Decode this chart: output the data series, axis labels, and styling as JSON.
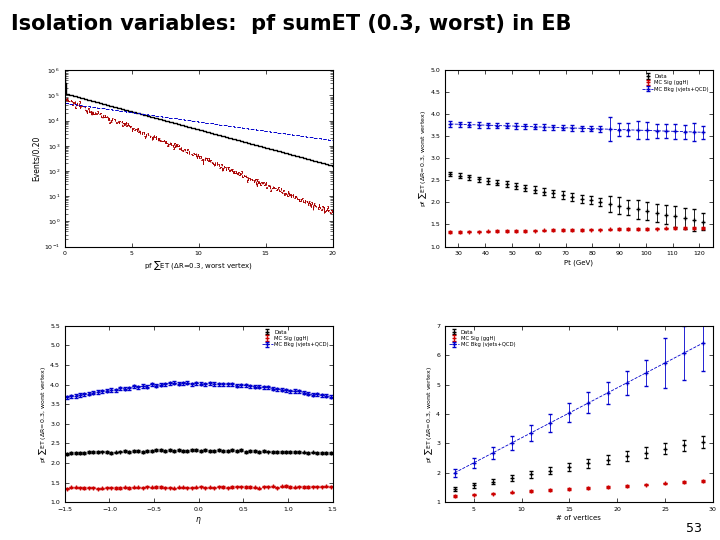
{
  "title": "Isolation variables:  pf sumET (0.3, worst) in EB",
  "title_fontsize": 15,
  "title_fontweight": "bold",
  "page_number": "53",
  "background_color": "#ffffff",
  "top_left": {
    "xlabel": "pf $\\sum$ET ($\\Delta$R=0.3, worst vertex)",
    "ylabel": "Events/0.20",
    "xmin": 0,
    "xmax": 20,
    "ymin": 0.1,
    "ymax": 1000000,
    "xticks": [
      0,
      5,
      10,
      15,
      20
    ],
    "data_color": "#000000",
    "sig_color": "#aa0000",
    "bkg_color": "#0000cc"
  },
  "top_right": {
    "xlabel": "Pt (GeV)",
    "ylabel": "pf $\\sum$ET ($\\Delta$R=0.3, worst vertex)",
    "xmin": 25,
    "xmax": 125,
    "ymin": 1.0,
    "ymax": 5.0,
    "yticks": [
      1.0,
      1.5,
      2.0,
      2.5,
      3.0,
      3.5,
      4.0,
      4.5,
      5.0
    ],
    "xticks": [
      30,
      40,
      50,
      60,
      70,
      80,
      90,
      100,
      110,
      120
    ],
    "legend_data": "Data",
    "legend_sig": "MC Sig (ggH)",
    "legend_bkg": "MC Bkg (vjets+QCD)",
    "data_color": "#000000",
    "sig_color": "#cc0000",
    "bkg_color": "#0000cc"
  },
  "bottom_left": {
    "xlabel": "$\\eta$",
    "ylabel": "pf $\\sum$ET ($\\Delta$R=0.3, worst vertex)",
    "xmin": -1.5,
    "xmax": 1.5,
    "ymin": 1.0,
    "ymax": 5.5,
    "yticks": [
      1.0,
      1.5,
      2.0,
      2.5,
      3.0,
      3.5,
      4.0,
      4.5,
      5.0,
      5.5
    ],
    "xticks": [
      -1.5,
      -1.0,
      -0.5,
      0.0,
      0.5,
      1.0,
      1.5
    ],
    "legend_data": "Data",
    "legend_sig": "MC Sig (ggH)",
    "legend_bkg": "MC Bkg (vjets+QCD)",
    "data_color": "#000000",
    "sig_color": "#cc0000",
    "bkg_color": "#0000cc"
  },
  "bottom_right": {
    "xlabel": "# of vertices",
    "ylabel": "pf $\\sum$ET ($\\Delta$R=0.3, worst vertex)",
    "xmin": 2,
    "xmax": 30,
    "ymin": 1.0,
    "ymax": 7.0,
    "yticks": [
      1,
      2,
      3,
      4,
      5,
      6,
      7
    ],
    "xticks": [
      5,
      10,
      15,
      20,
      25,
      30
    ],
    "legend_data": "Data",
    "legend_sig": "MC Sig (ggH)",
    "legend_bkg": "MC Bkg (vjets+QCD)",
    "data_color": "#000000",
    "sig_color": "#cc0000",
    "bkg_color": "#0000cc"
  }
}
